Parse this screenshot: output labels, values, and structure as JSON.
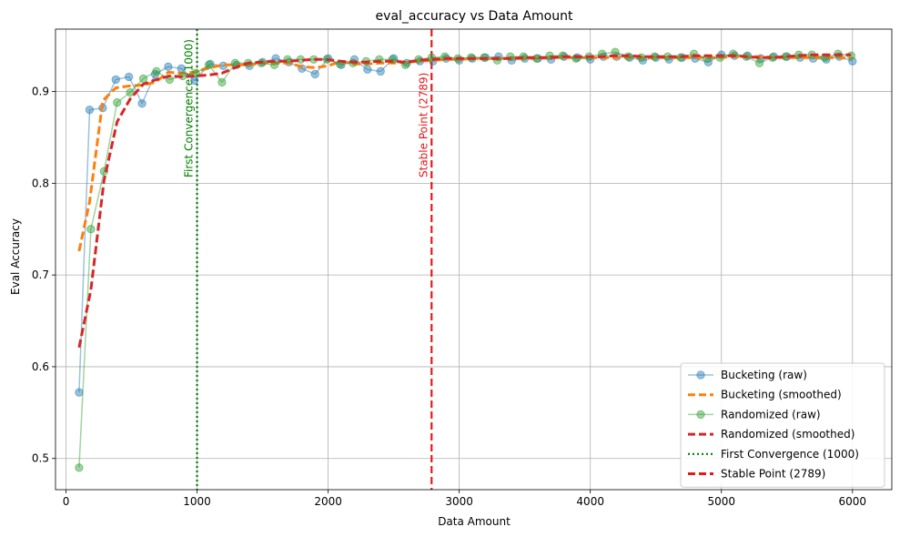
{
  "chart_data": {
    "type": "line",
    "title": "eval_accuracy vs Data Amount",
    "xlabel": "Data Amount",
    "ylabel": "Eval Accuracy",
    "xlim": [
      -80,
      6300
    ],
    "ylim": [
      0.466,
      0.968
    ],
    "xticks": [
      0,
      1000,
      2000,
      3000,
      4000,
      5000,
      6000
    ],
    "yticks": [
      0.5,
      0.6,
      0.7,
      0.8,
      0.9
    ],
    "grid": true,
    "legend_position": "lower-right",
    "series": [
      {
        "name": "Bucketing (raw)",
        "color": "#1f77b4",
        "style": "line-marker",
        "x": [
          100,
          180,
          280,
          380,
          480,
          580,
          680,
          780,
          880,
          980,
          1100,
          1200,
          1300,
          1400,
          1500,
          1600,
          1700,
          1800,
          1900,
          2000,
          2100,
          2200,
          2300,
          2400,
          2500,
          2600,
          2700,
          2800,
          2900,
          3000,
          3100,
          3200,
          3300,
          3400,
          3500,
          3600,
          3700,
          3800,
          3900,
          4000,
          4100,
          4200,
          4300,
          4400,
          4500,
          4600,
          4700,
          4800,
          4900,
          5000,
          5100,
          5200,
          5300,
          5400,
          5500,
          5600,
          5700,
          5800,
          5900,
          6000
        ],
        "y": [
          0.572,
          0.88,
          0.882,
          0.913,
          0.916,
          0.887,
          0.919,
          0.927,
          0.925,
          0.912,
          0.93,
          0.928,
          0.929,
          0.928,
          0.932,
          0.936,
          0.932,
          0.925,
          0.919,
          0.936,
          0.929,
          0.935,
          0.924,
          0.922,
          0.936,
          0.931,
          0.933,
          0.933,
          0.936,
          0.934,
          0.936,
          0.937,
          0.938,
          0.934,
          0.936,
          0.936,
          0.935,
          0.938,
          0.937,
          0.935,
          0.938,
          0.938,
          0.937,
          0.934,
          0.937,
          0.935,
          0.937,
          0.936,
          0.932,
          0.94,
          0.939,
          0.939,
          0.936,
          0.938,
          0.938,
          0.937,
          0.936,
          0.935,
          0.938,
          0.933
        ]
      },
      {
        "name": "Bucketing (smoothed)",
        "color": "#ff7f0e",
        "style": "dashed",
        "x": [
          100,
          180,
          280,
          380,
          480,
          580,
          680,
          780,
          880,
          980,
          1100,
          1200,
          1300,
          1400,
          1500,
          1600,
          1700,
          1800,
          1900,
          2000,
          2100,
          2200,
          2300,
          2400,
          2500,
          2600,
          2700,
          2800,
          2900,
          3000,
          3100,
          3200,
          3300,
          3400,
          3500,
          3600,
          3700,
          3800,
          3900,
          4000,
          4100,
          4200,
          4300,
          4400,
          4500,
          4600,
          4700,
          4800,
          4900,
          5000,
          5100,
          5200,
          5300,
          5400,
          5500,
          5600,
          5700,
          5800,
          5900,
          6000
        ],
        "y": [
          0.726,
          0.78,
          0.89,
          0.904,
          0.906,
          0.907,
          0.91,
          0.921,
          0.92,
          0.921,
          0.926,
          0.929,
          0.929,
          0.929,
          0.931,
          0.931,
          0.931,
          0.927,
          0.926,
          0.928,
          0.933,
          0.93,
          0.93,
          0.931,
          0.931,
          0.932,
          0.933,
          0.934,
          0.935,
          0.935,
          0.936,
          0.936,
          0.936,
          0.936,
          0.936,
          0.936,
          0.937,
          0.937,
          0.937,
          0.937,
          0.937,
          0.937,
          0.937,
          0.937,
          0.937,
          0.937,
          0.937,
          0.937,
          0.937,
          0.937,
          0.938,
          0.938,
          0.938,
          0.937,
          0.937,
          0.937,
          0.937,
          0.937,
          0.937,
          0.936
        ]
      },
      {
        "name": "Randomized (raw)",
        "color": "#2ca02c",
        "style": "line-marker",
        "x": [
          100,
          190,
          290,
          390,
          490,
          590,
          690,
          790,
          890,
          990,
          1090,
          1190,
          1290,
          1390,
          1490,
          1590,
          1690,
          1790,
          1890,
          1990,
          2090,
          2190,
          2290,
          2390,
          2490,
          2590,
          2690,
          2790,
          2890,
          2990,
          3090,
          3190,
          3290,
          3390,
          3490,
          3590,
          3690,
          3790,
          3890,
          3990,
          4090,
          4190,
          4290,
          4390,
          4490,
          4590,
          4690,
          4790,
          4890,
          4990,
          5090,
          5190,
          5290,
          5390,
          5490,
          5590,
          5690,
          5790,
          5890,
          5990
        ],
        "y": [
          0.49,
          0.75,
          0.813,
          0.888,
          0.899,
          0.914,
          0.922,
          0.913,
          0.917,
          0.92,
          0.929,
          0.91,
          0.931,
          0.931,
          0.931,
          0.929,
          0.935,
          0.935,
          0.935,
          0.935,
          0.93,
          0.931,
          0.933,
          0.935,
          0.935,
          0.929,
          0.935,
          0.937,
          0.938,
          0.936,
          0.937,
          0.937,
          0.934,
          0.938,
          0.938,
          0.936,
          0.939,
          0.939,
          0.936,
          0.938,
          0.941,
          0.943,
          0.938,
          0.937,
          0.938,
          0.938,
          0.937,
          0.941,
          0.936,
          0.937,
          0.941,
          0.938,
          0.931,
          0.937,
          0.938,
          0.94,
          0.94,
          0.937,
          0.941,
          0.939
        ]
      },
      {
        "name": "Randomized (smoothed)",
        "color": "#d62728",
        "style": "dashed",
        "x": [
          100,
          190,
          290,
          390,
          490,
          590,
          690,
          790,
          890,
          990,
          1090,
          1190,
          1290,
          1390,
          1490,
          1590,
          1690,
          1790,
          1890,
          1990,
          2090,
          2190,
          2290,
          2390,
          2490,
          2590,
          2690,
          2790,
          2890,
          2990,
          3090,
          3190,
          3290,
          3390,
          3490,
          3590,
          3690,
          3790,
          3890,
          3990,
          4090,
          4190,
          4290,
          4390,
          4490,
          4590,
          4690,
          4790,
          4890,
          4990,
          5090,
          5190,
          5290,
          5390,
          5490,
          5590,
          5690,
          5790,
          5890,
          5990
        ],
        "y": [
          0.621,
          0.684,
          0.803,
          0.867,
          0.892,
          0.908,
          0.913,
          0.917,
          0.916,
          0.917,
          0.918,
          0.92,
          0.926,
          0.931,
          0.932,
          0.933,
          0.933,
          0.934,
          0.935,
          0.935,
          0.933,
          0.932,
          0.932,
          0.933,
          0.933,
          0.932,
          0.934,
          0.935,
          0.936,
          0.936,
          0.936,
          0.936,
          0.936,
          0.936,
          0.937,
          0.937,
          0.937,
          0.938,
          0.938,
          0.938,
          0.938,
          0.939,
          0.939,
          0.938,
          0.938,
          0.938,
          0.938,
          0.939,
          0.939,
          0.939,
          0.939,
          0.938,
          0.937,
          0.937,
          0.938,
          0.939,
          0.94,
          0.94,
          0.94,
          0.94
        ]
      }
    ],
    "vlines": [
      {
        "name": "First Convergence (1000)",
        "label": "First Convergence (1000)",
        "x": 1000,
        "color": "#008000",
        "style": "dotted"
      },
      {
        "name": "Stable Point (2789)",
        "label": "Stable Point (2789)",
        "x": 2789,
        "color": "#e31a1c",
        "style": "dashed"
      }
    ]
  }
}
